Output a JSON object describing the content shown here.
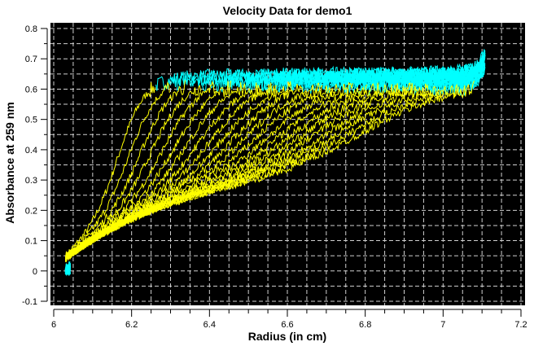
{
  "chart_data": {
    "type": "line",
    "title": "Velocity Data for demo1",
    "xlabel": "Radius (in cm)",
    "ylabel": "Absorbance at 259 nm",
    "xlim": [
      6.0,
      7.2
    ],
    "ylim": [
      -0.1,
      0.8
    ],
    "x_ticks": [
      "6",
      "6.2",
      "6.4",
      "6.6",
      "6.8",
      "7",
      "7.2"
    ],
    "y_ticks": [
      "-0.1",
      "0",
      "0.1",
      "0.2",
      "0.3",
      "0.4",
      "0.5",
      "0.6",
      "0.7",
      "0.8"
    ],
    "grid": true,
    "background": "#000000",
    "colors": {
      "scan": "#ffff00",
      "plateau": "#00ffff",
      "grid": "#d0d0d0"
    },
    "meniscus": 6.03,
    "cell_bottom": 7.11,
    "scan_count": 22,
    "boundary_midpoints": [
      6.17,
      6.2,
      6.23,
      6.26,
      6.29,
      6.32,
      6.35,
      6.38,
      6.41,
      6.44,
      6.47,
      6.5,
      6.53,
      6.56,
      6.59,
      6.62,
      6.65,
      6.68,
      6.71,
      6.74,
      6.77,
      6.8
    ],
    "plateau_absorbance": 0.65,
    "baseline_at_meniscus": 0.04,
    "baseline_near_boundary": 0.3
  }
}
